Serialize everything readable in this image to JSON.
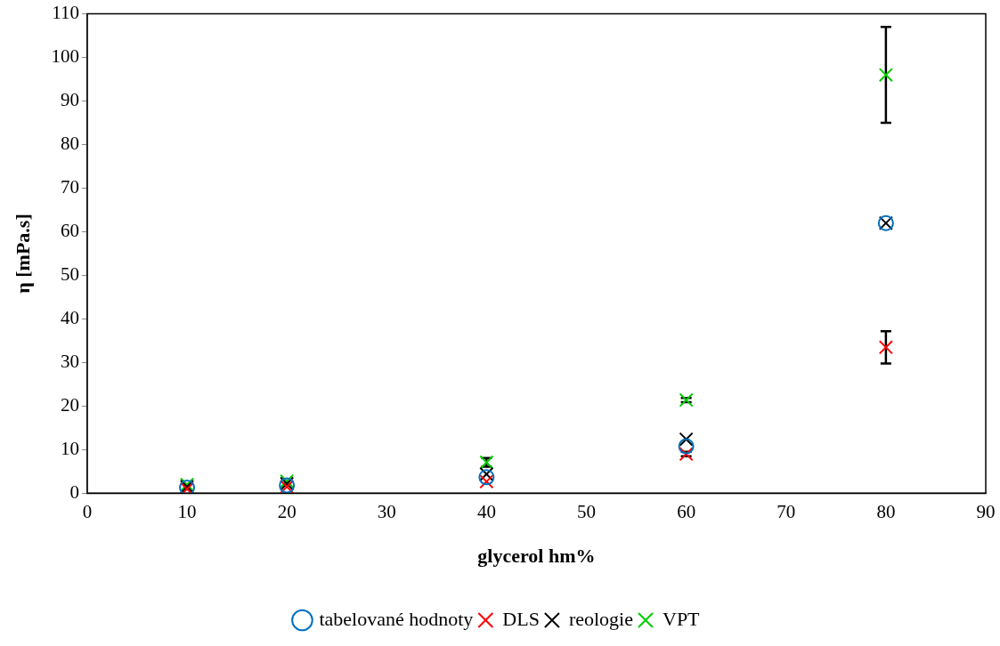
{
  "chart_data": {
    "type": "scatter",
    "xlabel": "glycerol hm%",
    "ylabel": "η [mPa.s]",
    "x": [
      10,
      20,
      40,
      60,
      80
    ],
    "series": [
      {
        "name": "tabelované hodnoty",
        "color": "#0070c0",
        "marker": "circle",
        "values": [
          1.3,
          1.8,
          3.7,
          10.8,
          62
        ]
      },
      {
        "name": "DLS",
        "color": "#ff0000",
        "marker": "cross",
        "values": [
          1.0,
          1.5,
          2.7,
          9.0,
          33.5
        ],
        "errors": [
          null,
          null,
          null,
          0.5,
          3.7
        ]
      },
      {
        "name": "reologie",
        "color": "#000000",
        "marker": "cross",
        "values": [
          1.5,
          2.2,
          4.4,
          12.4,
          62
        ]
      },
      {
        "name": "VPT",
        "color": "#00cc00",
        "marker": "cross",
        "values": [
          2.0,
          2.8,
          7.1,
          21.4,
          96
        ],
        "errors": [
          null,
          null,
          1,
          0.5,
          11
        ]
      }
    ],
    "xlim": [
      0,
      90
    ],
    "xticks": [
      0,
      10,
      20,
      30,
      40,
      50,
      60,
      70,
      80,
      90
    ],
    "ylim": [
      0,
      110
    ],
    "yticks": [
      0,
      10,
      20,
      30,
      40,
      50,
      60,
      70,
      80,
      90,
      100,
      110
    ],
    "grid": false,
    "legend": "bottom"
  }
}
